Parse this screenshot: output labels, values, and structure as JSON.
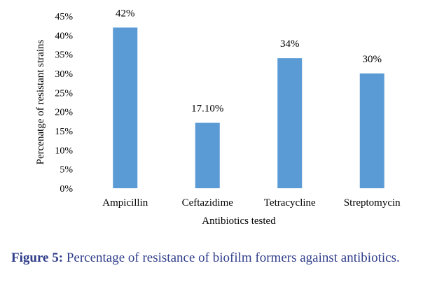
{
  "chart_data": {
    "type": "bar",
    "categories": [
      "Ampicillin",
      "Ceftazidime",
      "Tetracycline",
      "Streptomycin"
    ],
    "values": [
      42,
      17.1,
      34,
      30
    ],
    "data_labels": [
      "42%",
      "17.10%",
      "34%",
      "30%"
    ],
    "xlabel": "Antibiotics tested",
    "ylabel": "Percenatge of resistant strains",
    "ylim": [
      0,
      45
    ],
    "yticks": [
      0,
      5,
      10,
      15,
      20,
      25,
      30,
      35,
      40,
      45
    ],
    "ytick_labels": [
      "0%",
      "5%",
      "10%",
      "15%",
      "20%",
      "25%",
      "30%",
      "35%",
      "40%",
      "45%"
    ],
    "grid": false,
    "legend": "none",
    "bar_color": "#5b9bd5"
  },
  "caption": {
    "label": "Figure 5:",
    "text": "Percentage of resistance of biofilm formers against antibiotics."
  }
}
